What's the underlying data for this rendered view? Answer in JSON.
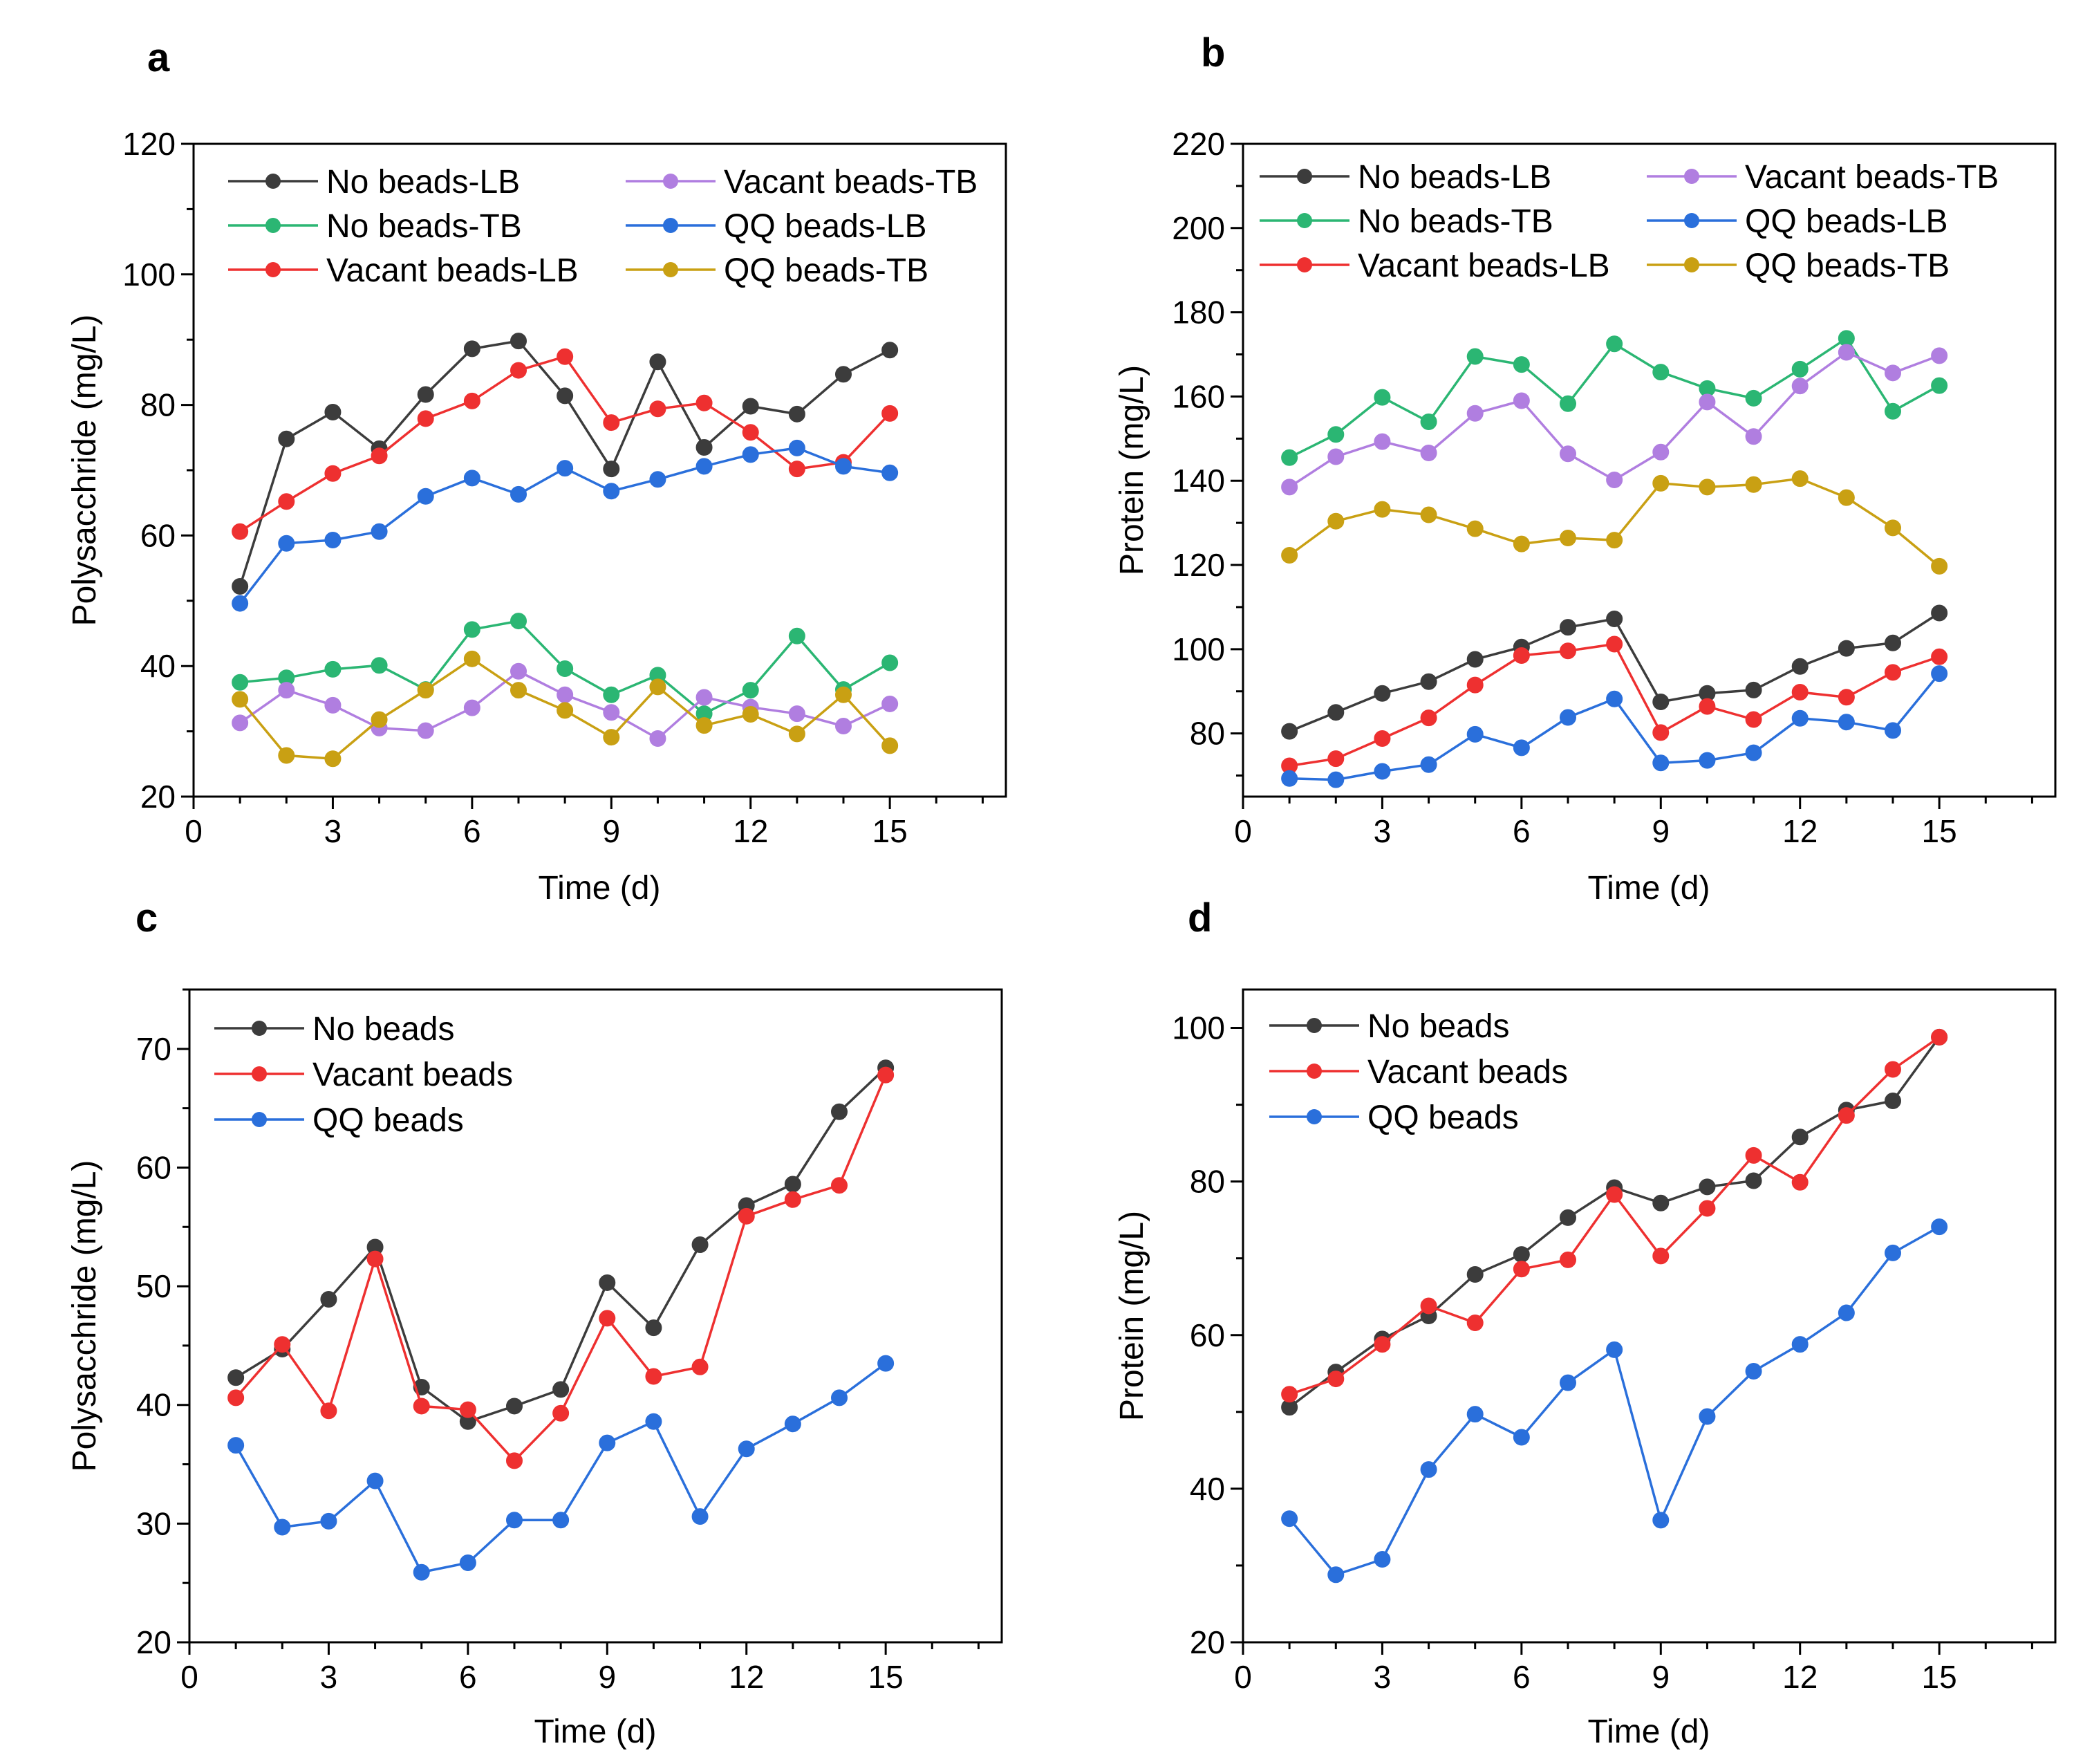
{
  "figure": {
    "series_colors": {
      "No beads-LB": "#3c3c3c",
      "Vacant beads-LB": "#ee3030",
      "QQ beads-LB": "#2a6fdb",
      "No beads-TB": "#2bb673",
      "Vacant beads-TB": "#b07ee0",
      "QQ beads-TB": "#c9a013",
      "No beads": "#3c3c3c",
      "Vacant beads": "#ee3030",
      "QQ beads": "#2a6fdb"
    }
  },
  "chart_data": [
    {
      "panel": "a",
      "type": "line",
      "xlabel": "Time (d)",
      "ylabel": "Polysacchride (mg/L)",
      "xlim": [
        0,
        17.5
      ],
      "ylim": [
        20,
        120
      ],
      "xticks": [
        0,
        3,
        6,
        9,
        12,
        15
      ],
      "yticks": [
        20,
        40,
        60,
        80,
        100,
        120
      ],
      "legend_columns": 2,
      "legend_position": "top-left",
      "x": [
        1,
        2,
        3,
        4,
        5,
        6,
        7,
        8,
        9,
        10,
        11,
        12,
        13,
        14,
        15
      ],
      "series": [
        {
          "name": "No beads-LB",
          "values": [
            52.2,
            74.8,
            78.9,
            73.3,
            81.6,
            88.6,
            89.8,
            81.4,
            70.2,
            86.6,
            73.5,
            79.8,
            78.6,
            84.7,
            88.4
          ]
        },
        {
          "name": "No beads-TB",
          "values": [
            37.5,
            38.2,
            39.5,
            40.1,
            36.4,
            45.6,
            46.9,
            39.6,
            35.6,
            38.6,
            32.7,
            36.3,
            44.6,
            36.4,
            40.5
          ]
        },
        {
          "name": "Vacant beads-LB",
          "values": [
            60.6,
            65.2,
            69.5,
            72.2,
            77.9,
            80.6,
            85.3,
            87.4,
            77.3,
            79.4,
            80.3,
            75.8,
            70.2,
            71.2,
            78.7
          ]
        },
        {
          "name": "Vacant beads-TB",
          "values": [
            31.3,
            36.3,
            34.0,
            30.5,
            30.1,
            33.6,
            39.2,
            35.6,
            32.9,
            28.9,
            35.2,
            33.7,
            32.7,
            30.8,
            34.2
          ]
        },
        {
          "name": "QQ beads-LB",
          "values": [
            49.6,
            58.8,
            59.3,
            60.6,
            66.0,
            68.8,
            66.3,
            70.3,
            66.8,
            68.6,
            70.6,
            72.4,
            73.4,
            70.6,
            69.6
          ]
        },
        {
          "name": "QQ beads-TB",
          "values": [
            34.9,
            26.3,
            25.8,
            31.8,
            36.3,
            41.1,
            36.3,
            33.2,
            29.1,
            36.8,
            30.9,
            32.6,
            29.6,
            35.6,
            27.8
          ]
        }
      ]
    },
    {
      "panel": "b",
      "type": "line",
      "xlabel": "Time (d)",
      "ylabel": "Protein (mg/L)",
      "xlim": [
        0,
        17.5
      ],
      "ylim": [
        65,
        220
      ],
      "xticks": [
        0,
        3,
        6,
        9,
        12,
        15
      ],
      "yticks": [
        80,
        100,
        120,
        140,
        160,
        180,
        200,
        220
      ],
      "legend_columns": 2,
      "legend_position": "top-left",
      "x": [
        1,
        2,
        3,
        4,
        5,
        6,
        7,
        8,
        9,
        10,
        11,
        12,
        13,
        14,
        15
      ],
      "series": [
        {
          "name": "No beads-LB",
          "values": [
            80.5,
            85.0,
            89.5,
            92.3,
            97.6,
            100.5,
            105.2,
            107.2,
            87.5,
            89.5,
            90.3,
            95.9,
            100.2,
            101.5,
            108.6
          ]
        },
        {
          "name": "No beads-TB",
          "values": [
            145.5,
            151.0,
            159.8,
            154.0,
            169.5,
            167.6,
            158.3,
            172.5,
            165.8,
            161.9,
            159.6,
            166.5,
            173.8,
            156.5,
            162.6
          ]
        },
        {
          "name": "Vacant beads-LB",
          "values": [
            72.3,
            74.0,
            78.8,
            83.7,
            91.5,
            98.5,
            99.6,
            101.2,
            80.2,
            86.4,
            83.3,
            89.8,
            88.6,
            94.5,
            98.2
          ]
        },
        {
          "name": "Vacant beads-TB",
          "values": [
            138.5,
            145.7,
            149.3,
            146.6,
            156.0,
            159.0,
            146.4,
            140.2,
            146.8,
            158.7,
            150.5,
            162.5,
            170.5,
            165.6,
            169.7
          ]
        },
        {
          "name": "QQ beads-LB",
          "values": [
            69.3,
            69.0,
            71.0,
            72.6,
            79.8,
            76.6,
            83.8,
            88.2,
            73.0,
            73.6,
            75.4,
            83.6,
            82.7,
            80.7,
            94.2
          ]
        },
        {
          "name": "QQ beads-TB",
          "values": [
            122.3,
            130.4,
            133.2,
            131.9,
            128.6,
            125.0,
            126.4,
            125.9,
            139.4,
            138.5,
            139.1,
            140.5,
            136.0,
            128.8,
            119.7
          ]
        }
      ]
    },
    {
      "panel": "c",
      "type": "line",
      "xlabel": "Time (d)",
      "ylabel": "Polysacchride (mg/L)",
      "xlim": [
        0,
        17.5
      ],
      "ylim": [
        20,
        75
      ],
      "xticks": [
        0,
        3,
        6,
        9,
        12,
        15
      ],
      "yticks": [
        20,
        30,
        40,
        50,
        60,
        70
      ],
      "legend_columns": 1,
      "legend_position": "top-left",
      "x": [
        1,
        2,
        3,
        4,
        5,
        6,
        7,
        8,
        9,
        10,
        11,
        12,
        13,
        14,
        15
      ],
      "series": [
        {
          "name": "No beads",
          "values": [
            42.3,
            44.7,
            48.9,
            53.3,
            41.5,
            38.6,
            39.9,
            41.3,
            50.3,
            46.5,
            53.5,
            56.8,
            58.6,
            64.7,
            68.4
          ]
        },
        {
          "name": "Vacant beads",
          "values": [
            40.6,
            45.1,
            39.5,
            52.3,
            39.9,
            39.6,
            35.3,
            39.3,
            47.3,
            42.4,
            43.2,
            55.9,
            57.3,
            58.5,
            67.8
          ]
        },
        {
          "name": "QQ beads",
          "values": [
            36.6,
            29.7,
            30.2,
            33.6,
            25.9,
            26.7,
            30.3,
            30.3,
            36.8,
            38.6,
            30.6,
            36.3,
            38.4,
            40.6,
            43.5
          ]
        }
      ]
    },
    {
      "panel": "d",
      "type": "line",
      "xlabel": "Time (d)",
      "ylabel": "Protein (mg/L)",
      "xlim": [
        0,
        17.5
      ],
      "ylim": [
        20,
        105
      ],
      "xticks": [
        0,
        3,
        6,
        9,
        12,
        15
      ],
      "yticks": [
        20,
        40,
        60,
        80,
        100
      ],
      "legend_columns": 1,
      "legend_position": "top-left",
      "x": [
        1,
        2,
        3,
        4,
        5,
        6,
        7,
        8,
        9,
        10,
        11,
        12,
        13,
        14,
        15
      ],
      "series": [
        {
          "name": "No beads",
          "values": [
            50.6,
            55.2,
            59.5,
            62.5,
            67.9,
            70.5,
            75.3,
            79.2,
            77.2,
            79.3,
            80.1,
            85.8,
            89.3,
            90.5,
            98.8
          ]
        },
        {
          "name": "Vacant beads",
          "values": [
            52.3,
            54.3,
            58.8,
            63.8,
            61.6,
            68.6,
            69.8,
            78.3,
            70.3,
            76.5,
            83.4,
            79.9,
            88.6,
            94.6,
            98.8
          ]
        },
        {
          "name": "QQ beads",
          "values": [
            36.1,
            28.8,
            30.8,
            42.5,
            49.7,
            46.7,
            53.8,
            58.1,
            35.9,
            49.4,
            55.3,
            58.8,
            62.9,
            70.7,
            74.1
          ]
        }
      ]
    }
  ]
}
